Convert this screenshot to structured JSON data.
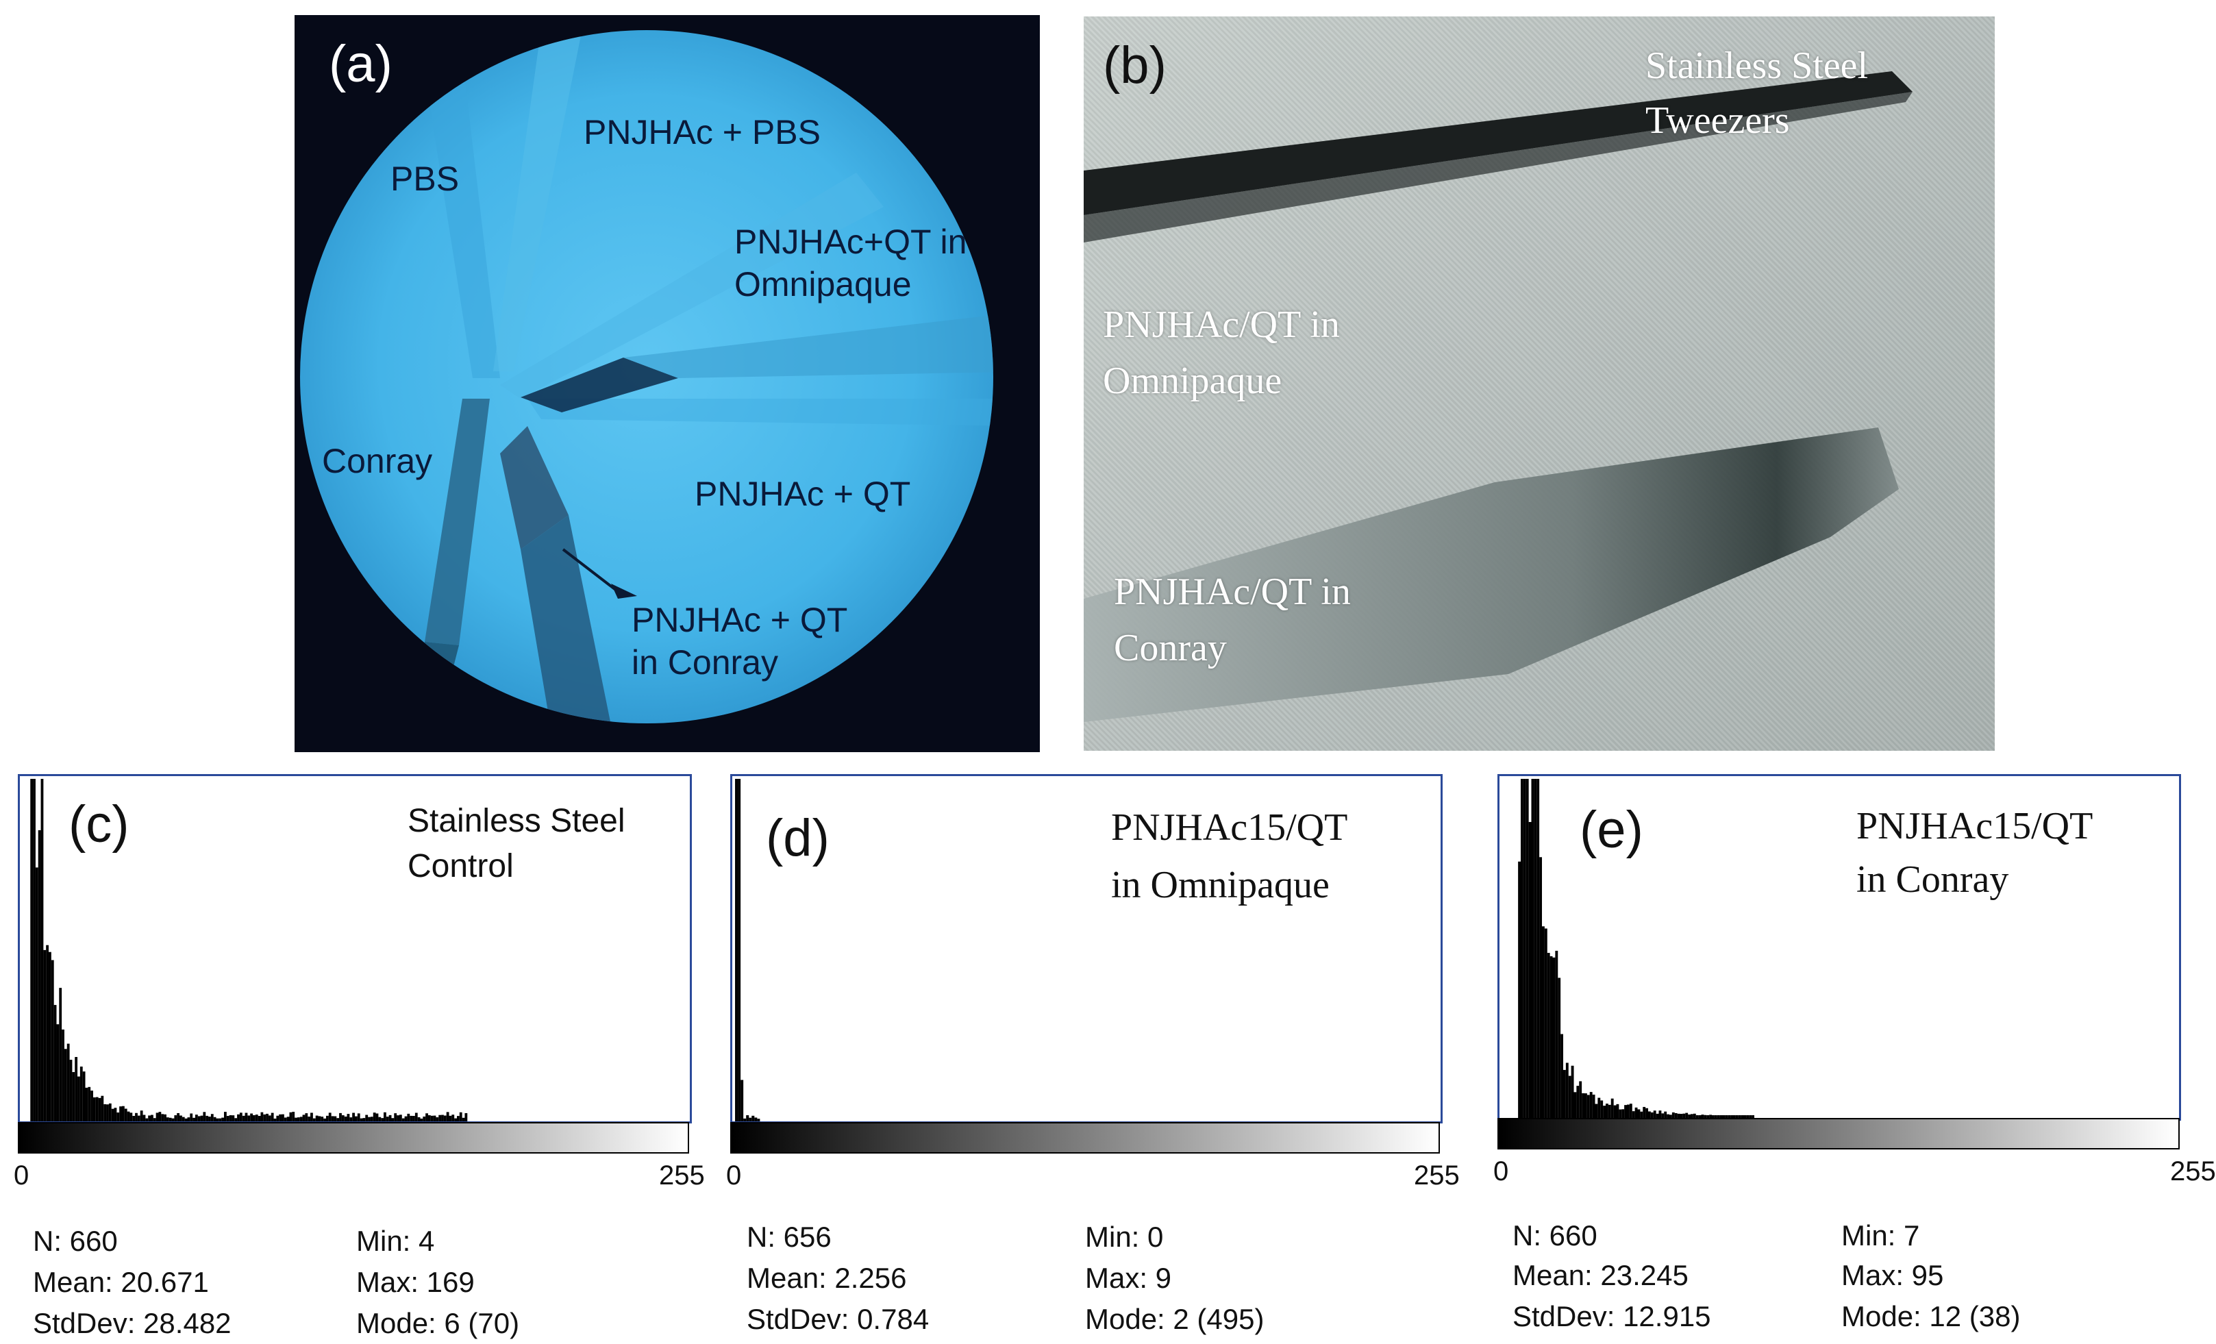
{
  "panel_a": {
    "letter": "(a)",
    "labels": {
      "pbs": "PBS",
      "pnjhac_pbs": "PNJHAc + PBS",
      "pnjhac_qt_omni_1": "PNJHAc+QT in",
      "pnjhac_qt_omni_2": "Omnipaque",
      "conray": "Conray",
      "pnjhac_qt": "PNJHAc + QT",
      "pnjhac_qt_conray_1": "PNJHAc + QT",
      "pnjhac_qt_conray_2": "in Conray"
    }
  },
  "panel_b": {
    "letter": "(b)",
    "labels": {
      "tweezers_1": "Stainless Steel",
      "tweezers_2": "Tweezers",
      "omni_1": "PNJHAc/QT in",
      "omni_2": "Omnipaque",
      "conray_1": "PNJHAc/QT in",
      "conray_2": "Conray"
    }
  },
  "histograms": [
    {
      "letter": "(c)",
      "title_1": "Stainless Steel",
      "title_2": "Control",
      "axis_min": "0",
      "axis_max": "255",
      "stats": {
        "n": "N: 660",
        "mean": "Mean: 20.671",
        "stddev": "StdDev: 28.482",
        "min": "Min: 4",
        "max": "Max: 169",
        "mode": "Mode: 6 (70)"
      }
    },
    {
      "letter": "(d)",
      "title_1": "PNJHAc15/QT",
      "title_2": "in Omnipaque",
      "axis_min": "0",
      "axis_max": "255",
      "stats": {
        "n": "N: 656",
        "mean": "Mean: 2.256",
        "stddev": "StdDev: 0.784",
        "min": "Min: 0",
        "max": "Max: 9",
        "mode": "Mode: 2 (495)"
      }
    },
    {
      "letter": "(e)",
      "title_1": "PNJHAc15/QT",
      "title_2": "in Conray",
      "axis_min": "0",
      "axis_max": "255",
      "stats": {
        "n": "N: 660",
        "mean": "Mean: 23.245",
        "stddev": "StdDev: 12.915",
        "min": "Min: 7",
        "max": "Max: 95",
        "mode": "Mode: 12 (38)"
      }
    }
  ],
  "colors": {
    "fluoro_bg": "#44b4e8",
    "frame_border": "#2b4a9a"
  }
}
